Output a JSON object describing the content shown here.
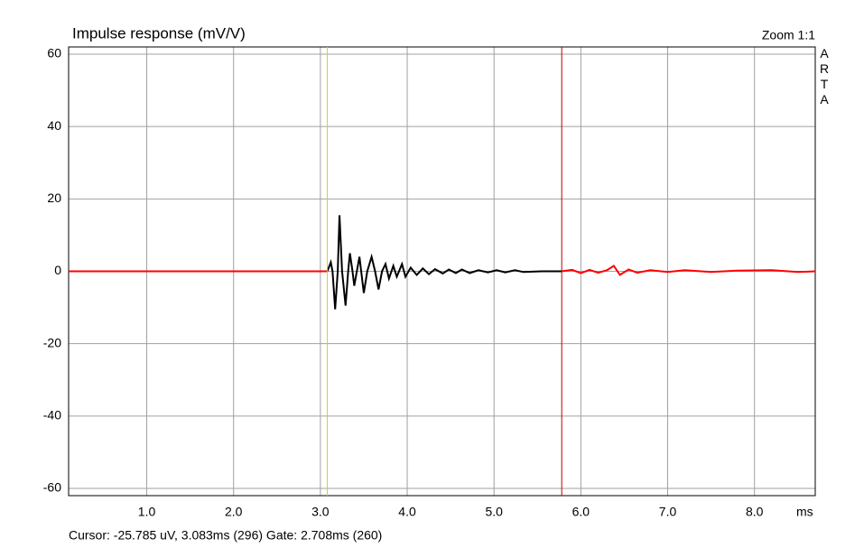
{
  "chart_data": {
    "type": "line",
    "title": "Impulse response (mV/V)",
    "zoom_label": "Zoom 1:1",
    "brand": "ARTA",
    "x_unit": "ms",
    "status": "Cursor: -25.785 uV, 3.083ms (296)  Gate: 2.708ms (260)",
    "xlim": [
      0.1,
      8.7
    ],
    "ylim": [
      -62,
      62
    ],
    "xticks": [
      {
        "value": 1,
        "label": "1.0"
      },
      {
        "value": 2,
        "label": "2.0"
      },
      {
        "value": 3,
        "label": "3.0"
      },
      {
        "value": 4,
        "label": "4.0"
      },
      {
        "value": 5,
        "label": "5.0"
      },
      {
        "value": 6,
        "label": "6.0"
      },
      {
        "value": 7,
        "label": "7.0"
      },
      {
        "value": 8,
        "label": "8.0"
      }
    ],
    "yticks": [
      60,
      40,
      20,
      0,
      -20,
      -40,
      -60
    ],
    "grid": true,
    "markers": [
      {
        "value": 3.08,
        "color": "#e0d000"
      },
      {
        "value": 5.78,
        "color": "#c00000"
      }
    ],
    "series": [
      {
        "color": "#ff0000",
        "x": [
          0.1,
          3.08
        ],
        "values": [
          0,
          0
        ]
      },
      {
        "color": "#000000",
        "x": [
          3.08,
          3.12,
          3.14,
          3.17,
          3.2,
          3.22,
          3.25,
          3.29,
          3.32,
          3.34,
          3.37,
          3.39,
          3.42,
          3.45,
          3.47,
          3.5,
          3.54,
          3.59,
          3.63,
          3.67,
          3.71,
          3.75,
          3.79,
          3.84,
          3.88,
          3.94,
          3.98,
          4.04,
          4.11,
          4.18,
          4.25,
          4.32,
          4.41,
          4.48,
          4.56,
          4.63,
          4.72,
          4.82,
          4.93,
          5.03,
          5.13,
          5.24,
          5.34,
          5.55,
          5.78
        ],
        "values": [
          0,
          2.5,
          0,
          -10.5,
          0,
          15.5,
          0,
          -9.5,
          0,
          5,
          0,
          -4,
          0,
          4,
          0,
          -6,
          0,
          4,
          0,
          -5,
          0,
          2,
          -2,
          1.5,
          -1.5,
          2,
          -1.5,
          1,
          -1,
          0.8,
          -0.8,
          0.6,
          -0.6,
          0.5,
          -0.5,
          0.5,
          -0.5,
          0.3,
          -0.3,
          0.3,
          -0.3,
          0.3,
          -0.2,
          0,
          0
        ]
      },
      {
        "color": "#ff0000",
        "x": [
          5.78,
          5.9,
          6.0,
          6.1,
          6.2,
          6.3,
          6.38,
          6.45,
          6.55,
          6.65,
          6.8,
          7.0,
          7.2,
          7.5,
          7.8,
          8.2,
          8.5,
          8.7
        ],
        "values": [
          0,
          0.4,
          -0.5,
          0.4,
          -0.4,
          0.3,
          1.5,
          -1,
          0.5,
          -0.4,
          0.3,
          -0.2,
          0.3,
          -0.2,
          0.2,
          0.3,
          -0.2,
          0
        ]
      }
    ]
  }
}
